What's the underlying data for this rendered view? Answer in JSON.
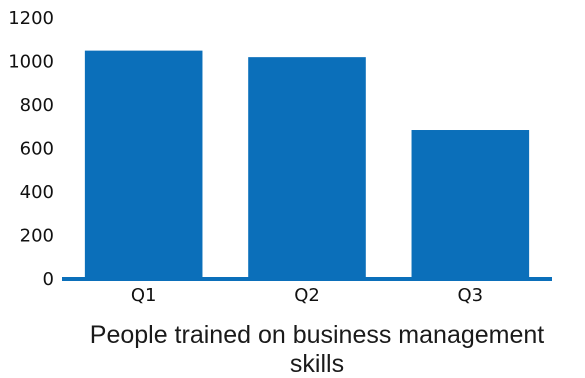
{
  "chart_data": {
    "type": "bar",
    "categories": [
      "Q1",
      "Q2",
      "Q3"
    ],
    "values": [
      1050,
      1020,
      685
    ],
    "title": "People trained on business management skills",
    "title_lines": [
      "People trained on business management",
      "skills"
    ],
    "xlabel": "",
    "ylabel": "",
    "ylim": [
      0,
      1200
    ],
    "yticks": [
      0,
      200,
      400,
      600,
      800,
      1000,
      1200
    ],
    "grid": false,
    "legend": "none",
    "bar_color": "#0b6fba",
    "axis_color": "#0b6fba"
  }
}
